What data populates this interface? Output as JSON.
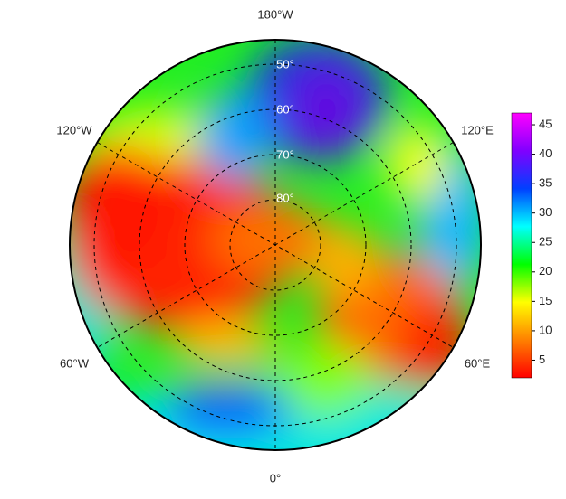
{
  "map": {
    "longitude_labels": [
      "180°W",
      "120°W",
      "120°E",
      "60°W",
      "60°E",
      "0°"
    ],
    "latitude_labels": [
      "50°",
      "60°",
      "70°",
      "80°"
    ],
    "colorbar": {
      "range": [
        2,
        47
      ],
      "ticks": [
        5,
        10,
        15,
        20,
        25,
        30,
        35,
        40,
        45
      ],
      "colors": [
        "#ff0000",
        "#ff8000",
        "#ffff00",
        "#00ff00",
        "#00ffff",
        "#0040ff",
        "#8000ff",
        "#ff00ff"
      ]
    }
  }
}
